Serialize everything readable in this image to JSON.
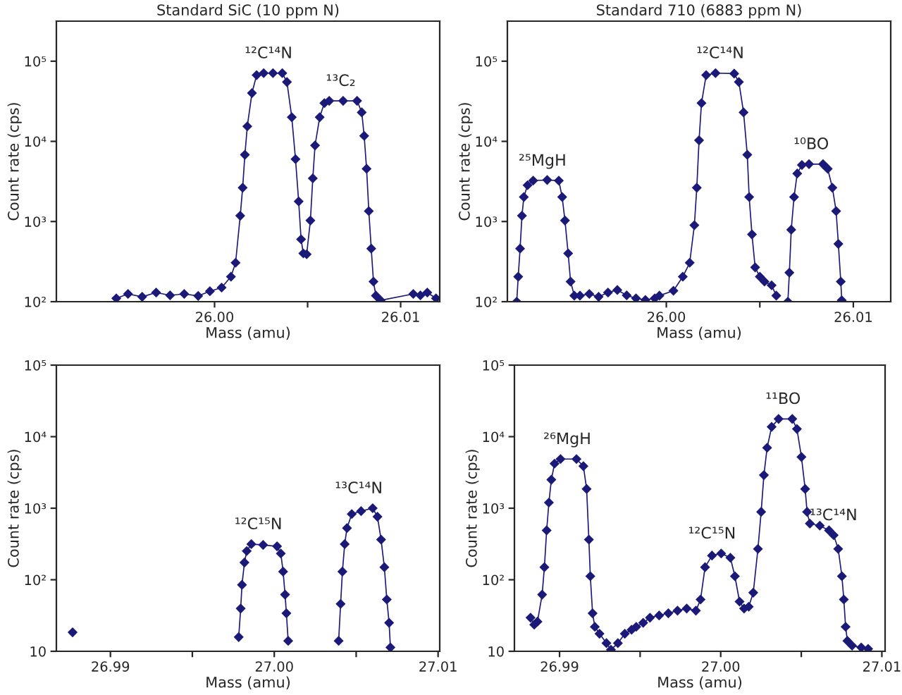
{
  "chart_data": [
    {
      "type": "line",
      "title": "Standard SiC (10 ppm N)",
      "xlabel": "Mass (amu)",
      "ylabel": "Count rate (cps)",
      "log": "y",
      "grid": false,
      "marker": "diamond",
      "line_style": "solid",
      "xlim": [
        25.9915,
        26.0121
      ],
      "ylim": [
        100,
        316000
      ],
      "xticks": [
        {
          "value": 26.0,
          "label": "26.00"
        },
        {
          "value": 26.005,
          "label": null
        },
        {
          "value": 26.01,
          "label": "26.01"
        }
      ],
      "yticks": [
        {
          "value": 100,
          "label": "10²"
        },
        {
          "value": 1000,
          "label": "10³"
        },
        {
          "value": 10000,
          "label": "10⁴"
        },
        {
          "value": 100000,
          "label": "10⁵"
        }
      ],
      "annotations": [
        {
          "text": "¹²C¹⁴N",
          "x": 26.0029,
          "y": 71000
        },
        {
          "text": "¹³C₂",
          "x": 26.00678,
          "y": 32000
        }
      ],
      "series": [
        {
          "color": "#1c1a78",
          "x": [
            25.99472,
            25.99535,
            25.99611,
            25.99686,
            25.99761,
            25.99837,
            25.99912,
            25.99975,
            26.00038,
            26.00088,
            26.00113,
            26.00138,
            26.00151,
            26.00163,
            26.00176,
            26.00201,
            26.00226,
            26.00264,
            26.00314,
            26.00364,
            26.00389,
            26.00415,
            26.00435,
            26.00452,
            26.00465,
            26.00477,
            26.00495,
            26.00515,
            26.00528,
            26.0054,
            26.00565,
            26.0059,
            26.00616,
            26.00691,
            26.00766,
            26.00791,
            26.00804,
            26.00817,
            26.00829,
            26.00842,
            26.00854,
            26.00867,
            26.00892,
            26.01068,
            26.01106,
            26.01143,
            26.0119
          ],
          "values": [
            110,
            125,
            115,
            130,
            120,
            125,
            118,
            135,
            150,
            205,
            306,
            1180,
            2640,
            6800,
            15400,
            40000,
            67000,
            71000,
            71000,
            71000,
            55000,
            20000,
            6000,
            1780,
            600,
            400,
            390,
            1030,
            3460,
            8900,
            20000,
            30000,
            32000,
            32000,
            32000,
            23000,
            11700,
            4550,
            1350,
            460,
            178,
            119,
            104,
            125,
            120,
            130,
            110
          ]
        }
      ]
    },
    {
      "type": "line",
      "title": "Standard 710 (6883 ppm N)",
      "xlabel": "Mass (amu)",
      "ylabel": "Count rate (cps)",
      "log": "y",
      "grid": false,
      "marker": "diamond",
      "line_style": "solid",
      "xlim": [
        25.9915,
        26.012
      ],
      "ylim": [
        100,
        316000
      ],
      "xticks": [
        {
          "value": 26.0,
          "label": "26.00"
        },
        {
          "value": 26.005,
          "label": null
        },
        {
          "value": 26.01,
          "label": "26.01"
        }
      ],
      "yticks": [
        {
          "value": 100,
          "label": "10²"
        },
        {
          "value": 1000,
          "label": "10³"
        },
        {
          "value": 10000,
          "label": "10⁴"
        },
        {
          "value": 100000,
          "label": "10⁵"
        }
      ],
      "annotations": [
        {
          "text": "²⁵MgH",
          "x": 25.99338,
          "y": 3240
        },
        {
          "text": "¹²C¹⁴N",
          "x": 26.00288,
          "y": 71000
        },
        {
          "text": "¹⁰BO",
          "x": 26.00775,
          "y": 5200
        }
      ],
      "series": [
        {
          "color": "#1c1a78",
          "x": [
            25.992,
            25.99208,
            25.99218,
            25.99228,
            25.99238,
            25.99258,
            25.99288,
            25.99363,
            25.99425,
            25.99443,
            25.99458,
            25.99475,
            25.99488,
            25.99508,
            25.99538,
            25.99588,
            25.99638,
            25.99688,
            25.99738,
            25.99788,
            25.99838,
            25.99888,
            25.99938,
            25.99963,
            26.00038,
            26.00088,
            26.00125,
            26.0015,
            26.00163,
            26.00175,
            26.00188,
            26.00213,
            26.00263,
            26.00363,
            26.00388,
            26.00413,
            26.00433,
            26.00443,
            26.00458,
            26.00475,
            26.005,
            26.00525,
            26.00563,
            26.00588,
            26.0062,
            26.0065,
            26.00658,
            26.00668,
            26.00683,
            26.007,
            26.00725,
            26.00763,
            26.00838,
            26.00863,
            26.00888,
            26.00908,
            26.0092,
            26.00933,
            26.00938
          ],
          "values": [
            100,
            205,
            460,
            1180,
            2020,
            2840,
            3240,
            3300,
            3240,
            2020,
            1030,
            400,
            178,
            119,
            119,
            125,
            115,
            130,
            140,
            120,
            110,
            105,
            110,
            119,
            137,
            205,
            306,
            900,
            2640,
            10300,
            30000,
            67000,
            71000,
            70000,
            55000,
            23000,
            6800,
            2020,
            690,
            268,
            205,
            178,
            160,
            119,
            null,
            100,
            230,
            790,
            2020,
            3970,
            5070,
            5200,
            5200,
            4550,
            2640,
            1350,
            525,
            178,
            104
          ]
        }
      ]
    },
    {
      "type": "line",
      "xlabel": "Mass (amu)",
      "ylabel": "Count rate (cps)",
      "log": "y",
      "grid": false,
      "marker": "diamond",
      "line_style": "solid",
      "xlim": [
        26.9867,
        27.0101
      ],
      "ylim": [
        10,
        100000
      ],
      "xticks": [
        {
          "value": 26.99,
          "label": "26.99"
        },
        {
          "value": 26.995,
          "label": null
        },
        {
          "value": 27.0,
          "label": "27.00"
        },
        {
          "value": 27.005,
          "label": null
        },
        {
          "value": 27.01,
          "label": "27.01"
        }
      ],
      "yticks": [
        10,
        {
          "value": 100,
          "label": "10²"
        },
        {
          "value": 1000,
          "label": "10³"
        },
        {
          "value": 10000,
          "label": "10⁴"
        },
        {
          "value": 100000,
          "label": "10⁵"
        }
      ],
      "annotations": [
        {
          "text": "¹²C¹⁵N",
          "x": 26.99903,
          "y": 315
        },
        {
          "text": "¹³C¹⁴N",
          "x": 27.00516,
          "y": 1000
        }
      ],
      "series": [
        {
          "color": "#1c1a78",
          "x": [
            26.98769,
            26.9978,
            26.99783,
            26.99795,
            26.99803,
            26.99818,
            26.99832,
            26.9986,
            26.99932,
            27.00017,
            27.0004,
            27.00054,
            27.00066,
            27.00074,
            27.00085,
            27.0024,
            27.00393,
            27.00405,
            27.00416,
            27.0043,
            27.00444,
            27.00473,
            27.0053,
            27.00601,
            27.0063,
            27.00652,
            27.00672,
            27.00687,
            27.00701,
            27.00709
          ],
          "values": [
            18.4,
            null,
            15.8,
            39.6,
            85,
            174,
            252,
            315,
            307,
            293,
            233,
            130,
            62,
            34,
            14,
            null,
            14,
            46,
            130,
            315,
            528,
            830,
            910,
            1000,
            760,
            364,
            150,
            53,
            25,
            11.3
          ]
        }
      ]
    },
    {
      "type": "line",
      "xlabel": "Mass (amu)",
      "ylabel": "Count rate (cps)",
      "log": "y",
      "grid": false,
      "marker": "diamond",
      "line_style": "solid",
      "xlim": [
        26.9872,
        27.0102
      ],
      "ylim": [
        10,
        100000
      ],
      "xticks": [
        {
          "value": 26.99,
          "label": "26.99"
        },
        {
          "value": 26.995,
          "label": null
        },
        {
          "value": 27.0,
          "label": "27.00"
        },
        {
          "value": 27.005,
          "label": null
        },
        {
          "value": 27.01,
          "label": "27.01"
        }
      ],
      "yticks": [
        10,
        {
          "value": 100,
          "label": "10²"
        },
        {
          "value": 1000,
          "label": "10³"
        },
        {
          "value": 10000,
          "label": "10⁴"
        },
        {
          "value": 100000,
          "label": "10⁵"
        }
      ],
      "annotations": [
        {
          "text": "²⁶MgH",
          "x": 26.99048,
          "y": 4870
        },
        {
          "text": "¹²C¹⁵N",
          "x": 26.99946,
          "y": 233
        },
        {
          "text": "¹¹BO",
          "x": 27.00387,
          "y": 17700
        },
        {
          "text": "¹³C¹⁴N",
          "x": 27.007,
          "y": 420
        }
      ],
      "series": [
        {
          "color": "#1c1a78",
          "x": [
            26.9882,
            26.98843,
            26.98863,
            26.98892,
            26.98906,
            26.9892,
            26.98934,
            26.98949,
            26.98969,
            26.99006,
            26.99105,
            26.99148,
            26.99168,
            26.99182,
            26.99191,
            26.99205,
            26.99219,
            26.99248,
            26.99291,
            26.99319,
            26.99362,
            26.99405,
            26.99447,
            26.99476,
            26.99519,
            26.99561,
            26.99618,
            26.99675,
            26.99732,
            26.99789,
            26.99846,
            26.99875,
            26.99903,
            26.99946,
            27.00003,
            27.0006,
            27.00088,
            27.00117,
            27.00145,
            27.00174,
            27.00202,
            27.00231,
            27.00251,
            27.00268,
            27.00288,
            27.00316,
            27.00359,
            27.00444,
            27.00473,
            27.00501,
            27.00524,
            27.00536,
            27.00553,
            27.00615,
            27.00672,
            27.00701,
            27.00729,
            27.00752,
            27.00764,
            27.00775,
            27.00786,
            27.00815,
            27.00872,
            27.00915
          ],
          "values": [
            29.5,
            23.6,
            26,
            62,
            150,
            490,
            1200,
            2500,
            4200,
            4870,
            4870,
            3870,
            1860,
            364,
            112,
            34,
            22,
            17.6,
            13,
            10.5,
            13,
            17.6,
            20,
            22,
            25,
            29.5,
            31.7,
            34,
            37,
            39.6,
            37,
            53,
            150,
            218,
            233,
            203,
            112,
            49.5,
            39.6,
            42,
            66,
            270,
            890,
            2900,
            7000,
            13700,
            17700,
            17700,
            12800,
            5200,
            1860,
            890,
            610,
            570,
            490,
            420,
            270,
            112,
            53,
            22,
            14,
            12,
            11.3,
            10.8
          ]
        }
      ]
    }
  ]
}
